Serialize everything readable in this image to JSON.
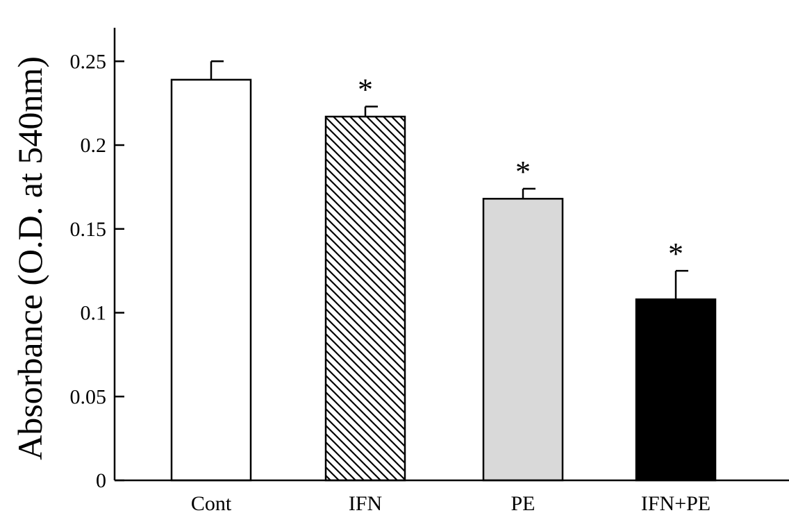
{
  "chart_data": {
    "type": "bar",
    "ylabel": "Absorbance (O.D. at 540nm)",
    "xlabel": "",
    "ylim": [
      0,
      0.27
    ],
    "yticks": [
      0,
      0.05,
      0.1,
      0.15,
      0.2,
      0.25
    ],
    "ytick_labels": [
      "0",
      "0.05",
      "0.1",
      "0.15",
      "0.2",
      "0.25"
    ],
    "categories": [
      "Cont",
      "IFN",
      "PE",
      "IFN+PE"
    ],
    "values": [
      0.239,
      0.217,
      0.168,
      0.108
    ],
    "errors": [
      0.011,
      0.006,
      0.006,
      0.017
    ],
    "significance": [
      "",
      "*",
      "*",
      "*"
    ],
    "fills": [
      "white",
      "hatched",
      "#d9d9d9",
      "#000000"
    ],
    "grid": false,
    "legend": "none"
  }
}
